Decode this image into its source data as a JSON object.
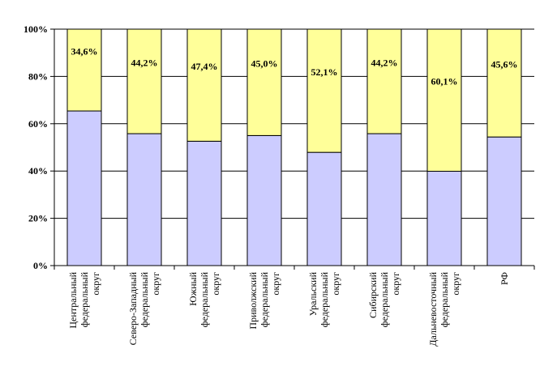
{
  "chart_data": {
    "type": "bar",
    "stacked": "percent",
    "categories": [
      [
        "Центральный",
        "федеральный",
        "округ"
      ],
      [
        "Северо-Западный",
        "федеральный",
        "округ"
      ],
      [
        "Южный",
        "федеральный",
        "округ"
      ],
      [
        "Приволжский",
        "федеральный",
        "округ"
      ],
      [
        "Уральский",
        "федеральный",
        "округ"
      ],
      [
        "Сибирский",
        "федеральный",
        "округ"
      ],
      [
        "Дальневосточный",
        "федеральный",
        "округ"
      ],
      [
        "РФ"
      ]
    ],
    "series": [
      {
        "values": [
          65.4,
          55.8,
          52.6,
          55.0,
          47.9,
          55.8,
          39.9,
          54.4
        ],
        "color": "#ccccff"
      },
      {
        "values": [
          34.6,
          44.2,
          47.4,
          45.0,
          52.1,
          44.2,
          60.1,
          45.6
        ],
        "color": "#ffff99",
        "labels": [
          "34,6%",
          "44,2%",
          "47,4%",
          "45,0%",
          "52,1%",
          "44,2%",
          "60,1%",
          "45,6%"
        ]
      }
    ],
    "yticks": [
      "0%",
      "20%",
      "40%",
      "60%",
      "80%",
      "100%"
    ],
    "ylim": [
      0,
      100
    ],
    "grid": true,
    "legend": "none"
  }
}
